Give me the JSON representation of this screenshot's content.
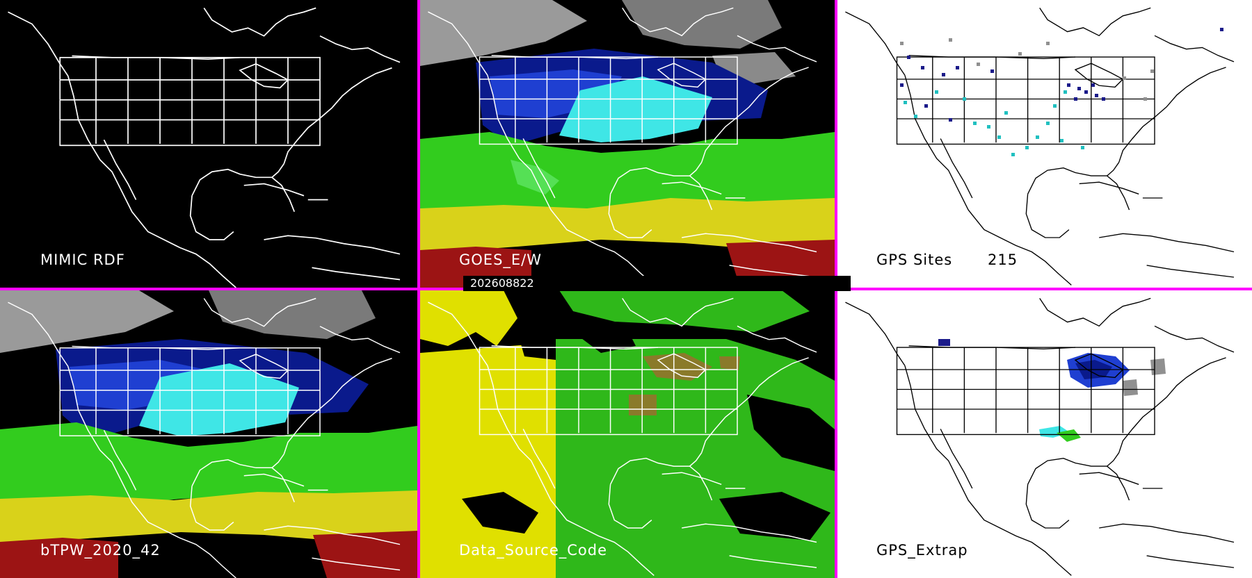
{
  "panels": [
    {
      "id": "top-left",
      "label": "MIMIC RDF"
    },
    {
      "id": "top-middle",
      "label": "GOES_E/W"
    },
    {
      "id": "top-right",
      "label": "GPS Sites",
      "site_count": "215"
    },
    {
      "id": "bottom-left",
      "label": "bTPW_2020_42"
    },
    {
      "id": "bottom-middle",
      "label": "Data_Source_Code"
    },
    {
      "id": "bottom-right",
      "label": "GPS_Extrap"
    }
  ],
  "timestamp": "202608822",
  "colors": {
    "divider": "#ff00ff",
    "moisture_dry_dark_blue": "#0a1a8c",
    "moisture_blue": "#1f3fd1",
    "moisture_cyan": "#3fe6e6",
    "moisture_green": "#32cc1e",
    "moisture_yellow": "#d9d21a",
    "moisture_red": "#9c1414",
    "cloud_gray": "#9a9a9a",
    "source_yellow": "#e0e000",
    "source_green": "#2fb81a",
    "source_olive": "#8a7a2a",
    "site_dark_blue": "#1a1a8a",
    "site_cyan": "#20c0c0",
    "site_gray": "#909090"
  }
}
